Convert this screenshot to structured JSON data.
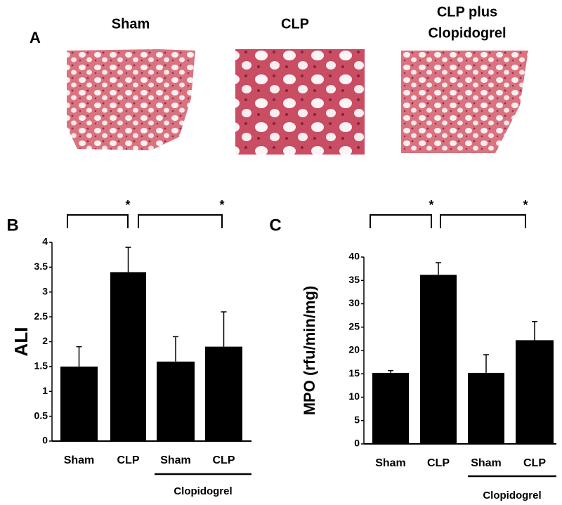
{
  "panel_a": {
    "label": "A",
    "images": [
      {
        "title": [
          "Sham"
        ]
      },
      {
        "title": [
          "CLP"
        ]
      },
      {
        "title": [
          "CLP plus",
          "Clopidogrel"
        ]
      }
    ]
  },
  "chart_data": [
    {
      "type": "bar",
      "panel_label": "B",
      "y_label": "ALI",
      "categories": [
        "Sham",
        "CLP",
        "Sham",
        "CLP"
      ],
      "group_label": "Clopidogrel",
      "values": [
        1.5,
        3.4,
        1.6,
        1.9
      ],
      "errors": [
        0.4,
        0.5,
        0.5,
        0.7
      ],
      "color": "#000000",
      "ylim": [
        0,
        4
      ],
      "yticks": [
        0,
        0.5,
        1,
        1.5,
        2,
        2.5,
        3,
        3.5,
        4
      ],
      "annotations": [
        "*",
        "*"
      ]
    },
    {
      "type": "bar",
      "panel_label": "C",
      "y_label": "MPO (rfu/min/mg)",
      "categories": [
        "Sham",
        "CLP",
        "Sham",
        "CLP"
      ],
      "group_label": "Clopidogrel",
      "values": [
        15.2,
        36.2,
        15.2,
        22.2
      ],
      "errors": [
        0.5,
        2.6,
        3.9,
        4.0
      ],
      "color": "#000000",
      "ylim": [
        0,
        40
      ],
      "yticks": [
        0,
        5,
        10,
        15,
        20,
        25,
        30,
        35,
        40
      ],
      "annotations": [
        "*",
        "*"
      ]
    }
  ]
}
